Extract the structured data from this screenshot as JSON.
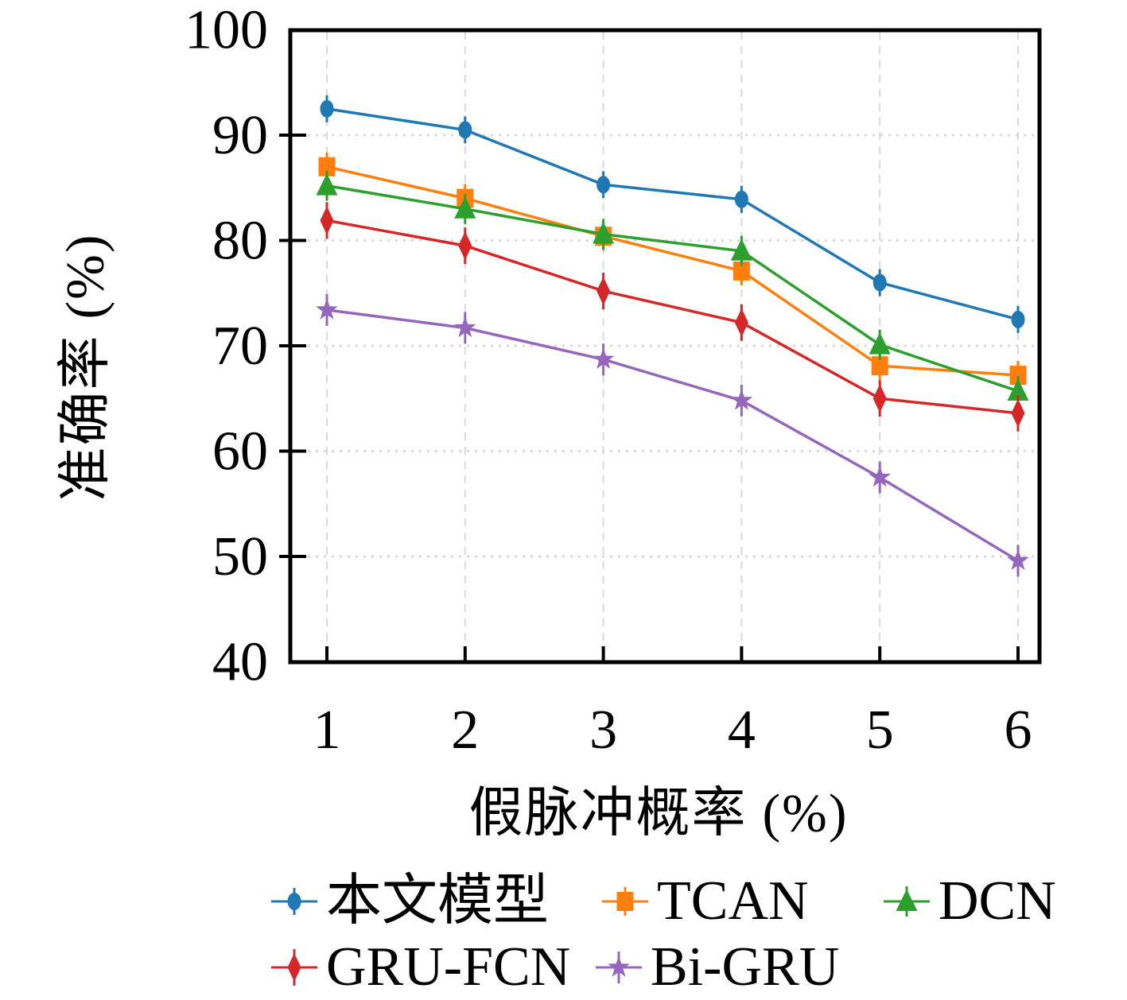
{
  "chart_data": {
    "type": "line",
    "title": "",
    "xlabel": "假脉冲概率 (%)",
    "ylabel": "准确率 (%)",
    "x": [
      1,
      2,
      3,
      4,
      5,
      6
    ],
    "xticks": [
      1,
      2,
      3,
      4,
      5,
      6
    ],
    "yticks": [
      40,
      50,
      60,
      70,
      80,
      90,
      100
    ],
    "xlim": [
      1,
      6
    ],
    "ylim": [
      40,
      100
    ],
    "grid": true,
    "legend_position": "below",
    "series": [
      {
        "name": "本文模型",
        "marker": "circle",
        "color": "#1f77b4",
        "values": [
          92.5,
          90.5,
          85.3,
          83.9,
          76.0,
          72.5
        ]
      },
      {
        "name": "TCAN",
        "marker": "square",
        "color": "#ff7f0e",
        "values": [
          87.0,
          84.0,
          80.4,
          77.1,
          68.1,
          67.2
        ]
      },
      {
        "name": "DCN",
        "marker": "triangle",
        "color": "#2ca02c",
        "values": [
          85.2,
          83.0,
          80.6,
          79.0,
          70.1,
          65.7
        ]
      },
      {
        "name": "GRU-FCN",
        "marker": "diamond",
        "color": "#d62728",
        "values": [
          81.9,
          79.5,
          75.2,
          72.2,
          65.0,
          63.6
        ]
      },
      {
        "name": "Bi-GRU",
        "marker": "star",
        "color": "#9467bd",
        "values": [
          73.4,
          71.7,
          68.7,
          64.8,
          57.5,
          49.6
        ]
      }
    ],
    "axis_color": "#000000",
    "grid_color": "#d9d9d9",
    "background_color": "#ffffff"
  }
}
